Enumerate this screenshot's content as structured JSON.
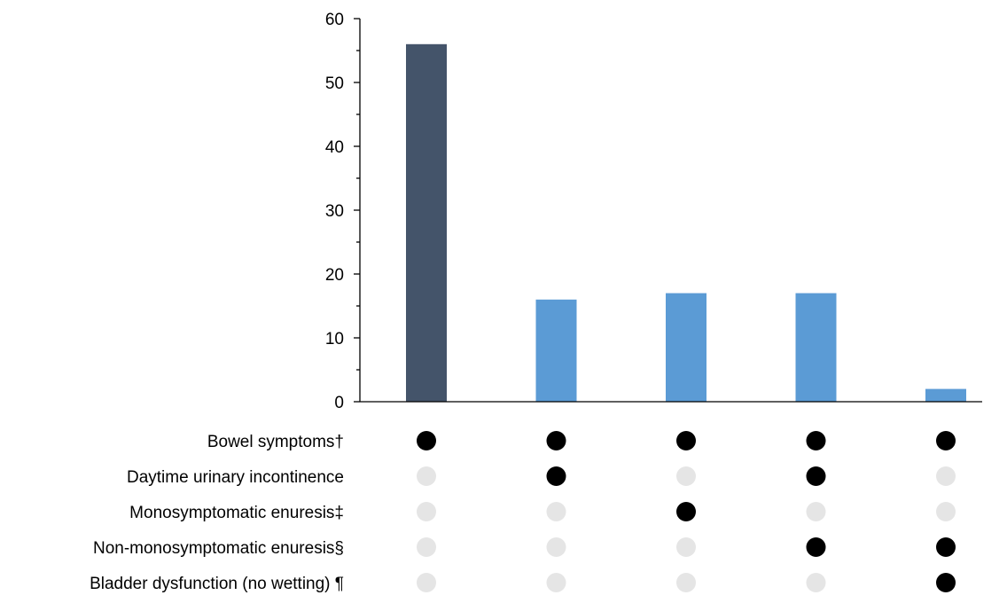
{
  "chart_data": {
    "type": "bar",
    "title": "",
    "xlabel": "",
    "ylabel": "",
    "ylim": [
      0,
      60
    ],
    "y_ticks": [
      "0",
      "10",
      "20",
      "30",
      "40",
      "50",
      "60"
    ],
    "y_tick_values": [
      0,
      10,
      20,
      30,
      40,
      50,
      60
    ],
    "values": [
      56,
      16,
      17,
      17,
      2
    ],
    "bar_colors": [
      "#44546a",
      "#5b9bd5",
      "#5b9bd5",
      "#5b9bd5",
      "#5b9bd5"
    ],
    "grid": false,
    "matrix": {
      "rows": [
        "Bowel symptoms†",
        "Daytime urinary incontinence",
        "Monosymptomatic enuresis‡",
        "Non-monosymptomatic enuresis§",
        "Bladder dysfunction (no wetting) ¶"
      ],
      "filled": [
        [
          true,
          true,
          true,
          true,
          true
        ],
        [
          false,
          true,
          false,
          true,
          false
        ],
        [
          false,
          false,
          true,
          false,
          false
        ],
        [
          false,
          false,
          false,
          true,
          true
        ],
        [
          false,
          false,
          false,
          false,
          true
        ]
      ],
      "active_color": "#000000",
      "inactive_color": "#e5e5e5"
    }
  }
}
